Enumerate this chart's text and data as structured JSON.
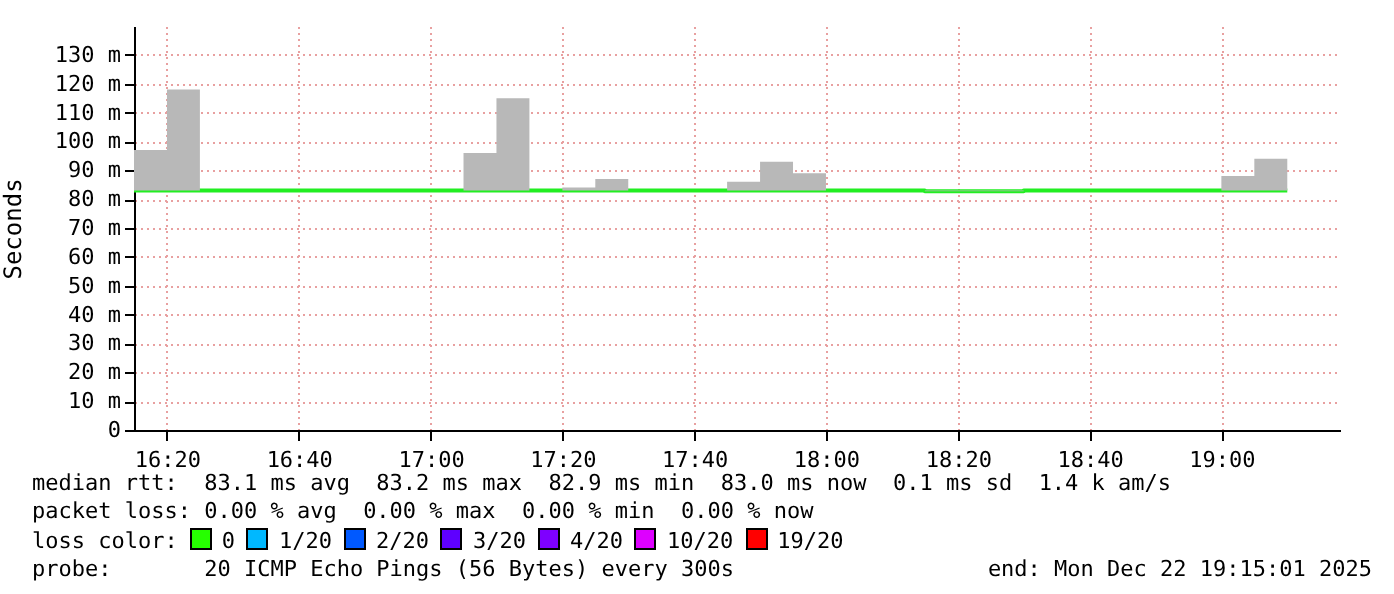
{
  "chart_data": {
    "type": "step",
    "ylabel": "Seconds",
    "x": [
      "2025-12-22T16:15",
      "2025-12-22T16:20",
      "2025-12-22T16:25",
      "2025-12-22T16:30",
      "2025-12-22T16:35",
      "2025-12-22T16:40",
      "2025-12-22T16:45",
      "2025-12-22T16:50",
      "2025-12-22T16:55",
      "2025-12-22T17:00",
      "2025-12-22T17:05",
      "2025-12-22T17:10",
      "2025-12-22T17:15",
      "2025-12-22T17:20",
      "2025-12-22T17:25",
      "2025-12-22T17:30",
      "2025-12-22T17:35",
      "2025-12-22T17:40",
      "2025-12-22T17:45",
      "2025-12-22T17:50",
      "2025-12-22T17:55",
      "2025-12-22T18:00",
      "2025-12-22T18:05",
      "2025-12-22T18:10",
      "2025-12-22T18:15",
      "2025-12-22T18:20",
      "2025-12-22T18:25",
      "2025-12-22T18:30",
      "2025-12-22T18:35",
      "2025-12-22T18:40",
      "2025-12-22T18:45",
      "2025-12-22T18:50",
      "2025-12-22T18:55",
      "2025-12-22T19:00",
      "2025-12-22T19:05",
      "2025-12-22T19:10"
    ],
    "series": [
      {
        "color": "#22ee22",
        "values": [
          83,
          83,
          83,
          83,
          83,
          83,
          83,
          83,
          83,
          83,
          83,
          83,
          83,
          83,
          83,
          83,
          83,
          83,
          83,
          83,
          83,
          83,
          83,
          83,
          82.7,
          82.7,
          82.7,
          83,
          83,
          83,
          83,
          83,
          83,
          83,
          83,
          83
        ],
        "lower": [
          83,
          83,
          83,
          83,
          83,
          83,
          83,
          83,
          83,
          83,
          83,
          83,
          83,
          83,
          83,
          83,
          83,
          83,
          83,
          83,
          83,
          83,
          83,
          83,
          82.7,
          82.7,
          82.7,
          83,
          83,
          83,
          83,
          83,
          83,
          83,
          83,
          83
        ],
        "upper": [
          97,
          118,
          83,
          83,
          83,
          83,
          83,
          83,
          83,
          83,
          96,
          115,
          83,
          84,
          87,
          83,
          83,
          83,
          86,
          93,
          89,
          83,
          83,
          83,
          83,
          83,
          83,
          83,
          83,
          83,
          83,
          83,
          83,
          88,
          94,
          94
        ]
      }
    ],
    "xlim": [
      "2025-12-22T16:15",
      "2025-12-22T19:18"
    ],
    "xticks": [
      {
        "value": "2025-12-22T16:20",
        "label": "16:20"
      },
      {
        "value": "2025-12-22T16:40",
        "label": "16:40"
      },
      {
        "value": "2025-12-22T17:00",
        "label": "17:00"
      },
      {
        "value": "2025-12-22T17:20",
        "label": "17:20"
      },
      {
        "value": "2025-12-22T17:40",
        "label": "17:40"
      },
      {
        "value": "2025-12-22T18:00",
        "label": "18:00"
      },
      {
        "value": "2025-12-22T18:20",
        "label": "18:20"
      },
      {
        "value": "2025-12-22T18:40",
        "label": "18:40"
      },
      {
        "value": "2025-12-22T19:00",
        "label": "19:00"
      }
    ],
    "ylim": [
      0,
      140
    ],
    "yticks": [
      0,
      {
        "value": 10,
        "label": "10 m"
      },
      {
        "value": 20,
        "label": "20 m"
      },
      {
        "value": 30,
        "label": "30 m"
      },
      {
        "value": 40,
        "label": "40 m"
      },
      {
        "value": 50,
        "label": "50 m"
      },
      {
        "value": 60,
        "label": "60 m"
      },
      {
        "value": 70,
        "label": "70 m"
      },
      {
        "value": 80,
        "label": "80 m"
      },
      {
        "value": 90,
        "label": "90 m"
      },
      {
        "value": 100,
        "label": "100 m"
      },
      {
        "value": 110,
        "label": "110 m"
      },
      {
        "value": 120,
        "label": "120 m"
      },
      {
        "value": 130,
        "label": "130 m"
      }
    ],
    "grid": true,
    "marker": "none",
    "line_style": "solid",
    "annotations": [
      "median rtt:  83.1 ms avg  83.2 ms max  82.9 ms min  83.0 ms now  0.1 ms sd  1.4 k am/s",
      "packet loss: 0.00 % avg  0.00 % max  0.00 % min  0.00 % now",
      "loss color:",
      "0",
      "1/20",
      "2/20",
      "3/20",
      "4/20",
      "10/20",
      "19/20",
      "probe:       20 ICMP Echo Pings (56 Bytes) every 300s",
      "end: Mon Dec 22 19:15:01 2025"
    ]
  }
}
